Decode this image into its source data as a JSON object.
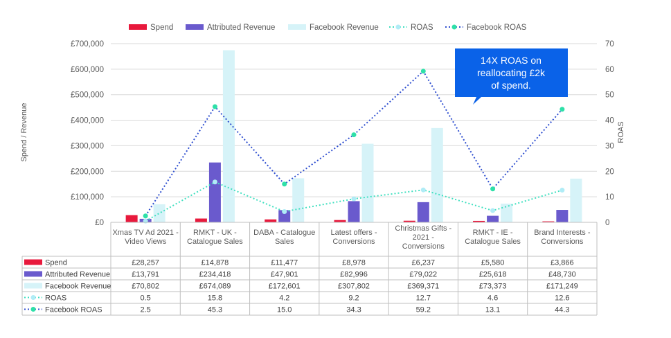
{
  "chart_data": {
    "type": "bar",
    "categories": [
      [
        "Xmas TV Ad 2021 -",
        "Video Views"
      ],
      [
        "RMKT - UK -",
        "Catalogue Sales"
      ],
      [
        "DABA - Catalogue",
        "Sales"
      ],
      [
        "Latest offers -",
        "Conversions"
      ],
      [
        "Christmas Gifts -",
        "2021 -",
        "Conversions"
      ],
      [
        "RMKT - IE -",
        "Catalogue Sales"
      ],
      [
        "Brand Interests -",
        "Conversions"
      ]
    ],
    "series": [
      {
        "name": "Spend",
        "kind": "bar",
        "axis": "left",
        "color": "#e8193c",
        "values": [
          28257,
          14878,
          11477,
          8978,
          6237,
          5580,
          3866
        ],
        "labels": [
          "£28,257",
          "£14,878",
          "£11,477",
          "£8,978",
          "£6,237",
          "£5,580",
          "£3,866"
        ]
      },
      {
        "name": "Attributed Revenue",
        "kind": "bar",
        "axis": "left",
        "color": "#6a5acd",
        "values": [
          13791,
          234418,
          47901,
          82996,
          79022,
          25618,
          48730
        ],
        "labels": [
          "£13,791",
          "£234,418",
          "£47,901",
          "£82,996",
          "£79,022",
          "£25,618",
          "£48,730"
        ]
      },
      {
        "name": "Facebook Revenue",
        "kind": "bar",
        "axis": "left",
        "color": "#d6f3f8",
        "values": [
          70802,
          674089,
          172601,
          307802,
          369371,
          73373,
          171249
        ],
        "labels": [
          "£70,802",
          "£674,089",
          "£172,601",
          "£307,802",
          "£369,371",
          "£73,373",
          "£171,249"
        ]
      },
      {
        "name": "ROAS",
        "kind": "line",
        "axis": "right",
        "color": "#40e0c0",
        "dot": "#b0ecf6",
        "values": [
          0.5,
          15.8,
          4.2,
          9.2,
          12.7,
          4.6,
          12.6
        ],
        "labels": [
          "0.5",
          "15.8",
          "4.2",
          "9.2",
          "12.7",
          "4.6",
          "12.6"
        ]
      },
      {
        "name": "Facebook ROAS",
        "kind": "line",
        "axis": "right",
        "color": "#2f4fd0",
        "dot": "#2ee0a8",
        "values": [
          2.5,
          45.3,
          15.0,
          34.3,
          59.2,
          13.1,
          44.3
        ],
        "labels": [
          "2.5",
          "45.3",
          "15.0",
          "34.3",
          "59.2",
          "13.1",
          "44.3"
        ]
      }
    ],
    "ylabel": "Spend / Revenue",
    "y2label": "ROAS",
    "ylim": [
      0,
      700000
    ],
    "y2lim": [
      0,
      70
    ],
    "yticks": [
      "£0",
      "£100,000",
      "£200,000",
      "£300,000",
      "£400,000",
      "£500,000",
      "£600,000",
      "£700,000"
    ],
    "y2ticks": [
      "0",
      "10",
      "20",
      "30",
      "40",
      "50",
      "60",
      "70"
    ],
    "grid": true,
    "legend": "top",
    "data_table": true,
    "annotation": {
      "lines": [
        "14X ROAS on",
        "reallocating £2k",
        "of spend."
      ],
      "color": "#0a62e8"
    }
  }
}
